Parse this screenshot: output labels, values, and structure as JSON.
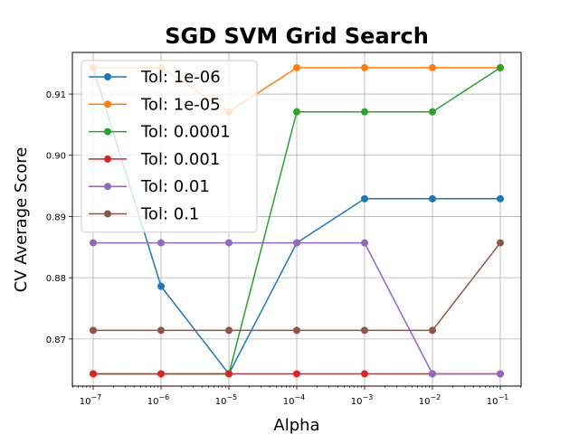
{
  "chart_data": {
    "type": "line",
    "title": "SGD SVM Grid Search",
    "xlabel": "Alpha",
    "ylabel": "CV Average Score",
    "x_scale": "log",
    "x": [
      1e-07,
      1e-06,
      1e-05,
      0.0001,
      0.001,
      0.01,
      0.1
    ],
    "x_tick_labels": [
      {
        "base": "10",
        "exp": "−7"
      },
      {
        "base": "10",
        "exp": "−6"
      },
      {
        "base": "10",
        "exp": "−5"
      },
      {
        "base": "10",
        "exp": "−4"
      },
      {
        "base": "10",
        "exp": "−3"
      },
      {
        "base": "10",
        "exp": "−2"
      },
      {
        "base": "10",
        "exp": "−1"
      }
    ],
    "ylim": [
      0.8623,
      0.9168
    ],
    "y_ticks": [
      0.87,
      0.88,
      0.89,
      0.9,
      0.91
    ],
    "y_tick_labels": [
      "0.87",
      "0.88",
      "0.89",
      "0.90",
      "0.91"
    ],
    "grid": true,
    "legend_position": "upper-left",
    "series": [
      {
        "name": "Tol: 1e-06",
        "color": "#1f77b4",
        "values": [
          0.9143,
          0.8786,
          0.8643,
          0.8857,
          0.8929,
          0.8929,
          0.8929
        ]
      },
      {
        "name": "Tol: 1e-05",
        "color": "#ff7f0e",
        "values": [
          0.9143,
          0.9143,
          0.9071,
          0.9143,
          0.9143,
          0.9143,
          0.9143
        ]
      },
      {
        "name": "Tol: 0.0001",
        "color": "#2ca02c",
        "values": [
          0.8643,
          0.8643,
          0.8643,
          0.9071,
          0.9071,
          0.9071,
          0.9143
        ]
      },
      {
        "name": "Tol: 0.001",
        "color": "#d62728",
        "values": [
          0.8643,
          0.8643,
          0.8643,
          0.8643,
          0.8643,
          0.8643,
          0.8643
        ]
      },
      {
        "name": "Tol: 0.01",
        "color": "#9467bd",
        "values": [
          0.8857,
          0.8857,
          0.8857,
          0.8857,
          0.8857,
          0.8643,
          0.8643
        ]
      },
      {
        "name": "Tol: 0.1",
        "color": "#8c564b",
        "values": [
          0.8714,
          0.8714,
          0.8714,
          0.8714,
          0.8714,
          0.8714,
          0.8857
        ]
      }
    ]
  }
}
